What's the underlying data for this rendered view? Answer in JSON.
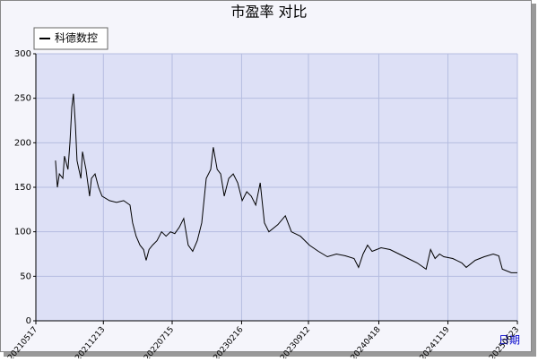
{
  "chart_data": {
    "type": "line",
    "title": "市盈率  对比",
    "x_label": "日期",
    "xlim": [
      "20210517",
      "20250623"
    ],
    "xticks": [
      "20210517",
      "20211213",
      "20220715",
      "20230216",
      "20230912",
      "20240418",
      "20241119",
      "20250623"
    ],
    "ylim": [
      0,
      300
    ],
    "yticks": [
      0,
      50,
      100,
      150,
      200,
      250,
      300
    ],
    "grid": true,
    "legend": "upper left",
    "x": [
      "20210717",
      "20210723",
      "20210729",
      "20210809",
      "20210814",
      "20210825",
      "20210831",
      "20210906",
      "20210911",
      "20210917",
      "20210922",
      "20210928",
      "20211004",
      "20211009",
      "20211020",
      "20211031",
      "20211106",
      "20211117",
      "20211128",
      "20211209",
      "20220101",
      "20220123",
      "20220214",
      "20220306",
      "20220314",
      "20220325",
      "20220406",
      "20220417",
      "20220425",
      "20220504",
      "20220515",
      "20220529",
      "20220612",
      "20220626",
      "20220710",
      "20220723",
      "20220806",
      "20220820",
      "20220903",
      "20220917",
      "20221001",
      "20221015",
      "20221029",
      "20221112",
      "20221120",
      "20221202",
      "20221213",
      "20221224",
      "20230107",
      "20230121",
      "20230204",
      "20230218",
      "20230304",
      "20230318",
      "20230401",
      "20230415",
      "20230428",
      "20230512",
      "20230609",
      "20230702",
      "20230721",
      "20230818",
      "20230915",
      "20231013",
      "20231110",
      "20231208",
      "20240105",
      "20240201",
      "20240215",
      "20240229",
      "20240314",
      "20240328",
      "20240425",
      "20240523",
      "20240620",
      "20240718",
      "20240815",
      "20240912",
      "20240926",
      "20241010",
      "20241024",
      "20241106",
      "20241204",
      "20250101",
      "20250115",
      "20250212",
      "20250312",
      "20250409",
      "20250426",
      "20250507",
      "20250604",
      "20250623"
    ],
    "series": [
      {
        "name": "科德数控",
        "color": "#000000",
        "values": [
          180,
          150,
          165,
          160,
          185,
          170,
          200,
          240,
          255,
          220,
          180,
          170,
          160,
          190,
          170,
          140,
          160,
          165,
          150,
          140,
          135,
          133,
          135,
          130,
          110,
          95,
          85,
          80,
          68,
          80,
          85,
          90,
          100,
          95,
          100,
          98,
          105,
          115,
          85,
          78,
          90,
          110,
          160,
          170,
          195,
          170,
          165,
          140,
          160,
          165,
          155,
          135,
          145,
          140,
          130,
          155,
          110,
          100,
          108,
          118,
          100,
          95,
          85,
          78,
          72,
          75,
          73,
          70,
          60,
          75,
          85,
          78,
          82,
          80,
          75,
          70,
          65,
          58,
          80,
          70,
          75,
          72,
          70,
          65,
          60,
          68,
          72,
          75,
          73,
          58,
          54,
          54
        ]
      }
    ]
  }
}
